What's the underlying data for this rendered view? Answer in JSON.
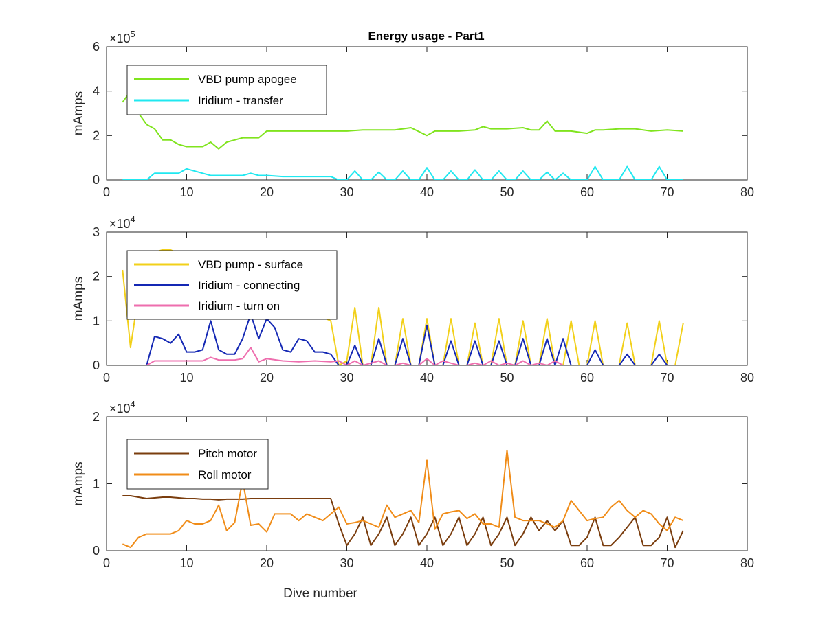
{
  "figure": {
    "title": "Energy usage - Part1"
  },
  "chart_data": [
    {
      "type": "line",
      "title": "Energy usage - Part1",
      "xlabel": "",
      "ylabel": "mAmps",
      "exponent_base": "×10",
      "exponent_power": "5",
      "xlim": [
        0,
        80
      ],
      "ylim": [
        0,
        6
      ],
      "xticks": [
        0,
        10,
        20,
        30,
        40,
        50,
        60,
        70,
        80
      ],
      "yticks": [
        0,
        2,
        4,
        6
      ],
      "legend_position": "top-left",
      "series": [
        {
          "name": "VBD pump apogee",
          "color": "#80e41e",
          "x": [
            2,
            3,
            4,
            5,
            6,
            7,
            8,
            9,
            10,
            11,
            12,
            13,
            14,
            15,
            16,
            17,
            18,
            19,
            20,
            22,
            24,
            26,
            28,
            30,
            32,
            34,
            36,
            38,
            40,
            41,
            42,
            44,
            46,
            47,
            48,
            50,
            52,
            53,
            54,
            55,
            56,
            58,
            60,
            61,
            62,
            64,
            66,
            68,
            70,
            72
          ],
          "y": [
            3.5,
            4.0,
            3.0,
            2.5,
            2.3,
            1.8,
            1.8,
            1.6,
            1.5,
            1.5,
            1.5,
            1.7,
            1.4,
            1.7,
            1.8,
            1.9,
            1.9,
            1.9,
            2.2,
            2.2,
            2.2,
            2.2,
            2.2,
            2.2,
            2.25,
            2.25,
            2.25,
            2.35,
            2.0,
            2.2,
            2.2,
            2.2,
            2.25,
            2.4,
            2.3,
            2.3,
            2.35,
            2.25,
            2.25,
            2.65,
            2.2,
            2.2,
            2.1,
            2.25,
            2.25,
            2.3,
            2.3,
            2.2,
            2.25,
            2.2
          ]
        },
        {
          "name": "Iridium - transfer",
          "color": "#20e8f0",
          "x": [
            2,
            3,
            4,
            5,
            6,
            7,
            8,
            9,
            10,
            11,
            12,
            13,
            14,
            15,
            16,
            17,
            18,
            19,
            20,
            22,
            24,
            26,
            28,
            29,
            30,
            31,
            32,
            33,
            34,
            35,
            36,
            37,
            38,
            39,
            40,
            41,
            42,
            43,
            44,
            45,
            46,
            47,
            48,
            49,
            50,
            51,
            52,
            53,
            54,
            55,
            56,
            57,
            58,
            59,
            60,
            61,
            62,
            63,
            64,
            65,
            66,
            67,
            68,
            69,
            70,
            71,
            72
          ],
          "y": [
            0,
            0,
            0,
            0,
            0.3,
            0.3,
            0.3,
            0.3,
            0.5,
            0.4,
            0.3,
            0.2,
            0.2,
            0.2,
            0.2,
            0.2,
            0.3,
            0.2,
            0.2,
            0.15,
            0.15,
            0.15,
            0.15,
            0,
            0,
            0.4,
            0,
            0,
            0.35,
            0,
            0,
            0.4,
            0,
            0,
            0.55,
            0,
            0,
            0.4,
            0,
            0,
            0.45,
            0,
            0,
            0.4,
            0,
            0,
            0.4,
            0,
            0,
            0.35,
            0,
            0.3,
            0,
            0,
            0,
            0.6,
            0,
            0,
            0,
            0.6,
            0,
            0,
            0,
            0.6,
            0,
            0,
            0
          ]
        }
      ]
    },
    {
      "type": "line",
      "title": "",
      "xlabel": "",
      "ylabel": "mAmps",
      "exponent_base": "×10",
      "exponent_power": "4",
      "xlim": [
        0,
        80
      ],
      "ylim": [
        0,
        3
      ],
      "xticks": [
        0,
        10,
        20,
        30,
        40,
        50,
        60,
        70,
        80
      ],
      "yticks": [
        0,
        1,
        2,
        3
      ],
      "legend_position": "top-left",
      "series": [
        {
          "name": "VBD pump - surface",
          "color": "#f2d01a",
          "x": [
            2,
            3,
            4,
            5,
            6,
            7,
            8,
            28,
            29,
            30,
            31,
            32,
            33,
            34,
            35,
            36,
            37,
            38,
            39,
            40,
            41,
            42,
            43,
            44,
            45,
            46,
            47,
            48,
            49,
            50,
            51,
            52,
            53,
            54,
            55,
            56,
            57,
            58,
            59,
            60,
            61,
            62,
            63,
            64,
            65,
            66,
            67,
            68,
            69,
            70,
            71,
            72
          ],
          "y": [
            2.15,
            0.4,
            1.6,
            2.3,
            2.55,
            2.6,
            2.6,
            1.0,
            0,
            0.1,
            1.3,
            0,
            0,
            1.3,
            0,
            0,
            1.05,
            0,
            0,
            1.05,
            0,
            0,
            1.05,
            0,
            0,
            0.95,
            0,
            0,
            1.05,
            0,
            0,
            1.0,
            0,
            0,
            1.05,
            0,
            0,
            1.0,
            0,
            0,
            1.0,
            0,
            0,
            0,
            0.95,
            0,
            0,
            0,
            1.0,
            0,
            0,
            0.95
          ]
        },
        {
          "name": "Iridium - connecting",
          "color": "#1428b4",
          "x": [
            2,
            3,
            4,
            5,
            6,
            7,
            8,
            9,
            10,
            11,
            12,
            13,
            14,
            15,
            16,
            17,
            18,
            19,
            20,
            21,
            22,
            23,
            24,
            25,
            26,
            27,
            28,
            29,
            30,
            31,
            32,
            33,
            34,
            35,
            36,
            37,
            38,
            39,
            40,
            41,
            42,
            43,
            44,
            45,
            46,
            47,
            48,
            49,
            50,
            51,
            52,
            53,
            54,
            55,
            56,
            57,
            58,
            59,
            60,
            61,
            62,
            63,
            64,
            65,
            66,
            67,
            68,
            69,
            70,
            71,
            72
          ],
          "y": [
            0,
            0,
            0,
            0,
            0.65,
            0.6,
            0.5,
            0.7,
            0.3,
            0.3,
            0.35,
            1.0,
            0.35,
            0.25,
            0.25,
            0.6,
            1.15,
            0.6,
            1.05,
            0.85,
            0.35,
            0.3,
            0.6,
            0.55,
            0.3,
            0.3,
            0.25,
            0,
            0,
            0.45,
            0,
            0,
            0.6,
            0,
            0,
            0.6,
            0,
            0,
            0.9,
            0,
            0,
            0.55,
            0,
            0,
            0.55,
            0,
            0,
            0.55,
            0,
            0,
            0.6,
            0,
            0,
            0.6,
            0,
            0.6,
            0,
            0,
            0,
            0.35,
            0,
            0,
            0,
            0.25,
            0,
            0,
            0,
            0.25,
            0,
            0,
            0
          ]
        },
        {
          "name": "Iridium - turn on",
          "color": "#ee6eae",
          "x": [
            2,
            3,
            4,
            5,
            6,
            8,
            10,
            12,
            13,
            14,
            16,
            17,
            18,
            19,
            20,
            22,
            24,
            26,
            28,
            29,
            30,
            31,
            32,
            33,
            34,
            35,
            36,
            37,
            38,
            39,
            40,
            41,
            42,
            43,
            44,
            45,
            46,
            47,
            48,
            49,
            50,
            51,
            52,
            53,
            54,
            55,
            56,
            57,
            58,
            60,
            62,
            64,
            66,
            68,
            70,
            72
          ],
          "y": [
            0,
            0,
            0,
            0,
            0.1,
            0.1,
            0.1,
            0.1,
            0.18,
            0.12,
            0.12,
            0.15,
            0.4,
            0.08,
            0.15,
            0.1,
            0.08,
            0.1,
            0.08,
            0.1,
            0,
            0.1,
            0,
            0.05,
            0.1,
            0,
            0,
            0.05,
            0,
            0,
            0.15,
            0,
            0.1,
            0.05,
            0,
            0,
            0.05,
            0,
            0.1,
            0,
            0.05,
            0,
            0.1,
            0,
            0.05,
            0,
            0.1,
            0,
            0,
            0,
            0,
            0,
            0,
            0,
            0,
            0
          ]
        }
      ]
    },
    {
      "type": "line",
      "title": "",
      "xlabel": "Dive number",
      "ylabel": "mAmps",
      "exponent_base": "×10",
      "exponent_power": "4",
      "xlim": [
        0,
        80
      ],
      "ylim": [
        0,
        2
      ],
      "xticks": [
        0,
        10,
        20,
        30,
        40,
        50,
        60,
        70,
        80
      ],
      "yticks": [
        0,
        1,
        2
      ],
      "legend_position": "top-left",
      "series": [
        {
          "name": "Pitch motor",
          "color": "#7a3d0e",
          "x": [
            2,
            3,
            4,
            5,
            6,
            7,
            8,
            9,
            10,
            11,
            12,
            13,
            14,
            15,
            16,
            17,
            18,
            19,
            20,
            21,
            22,
            23,
            24,
            25,
            26,
            27,
            28,
            29,
            30,
            31,
            32,
            33,
            34,
            35,
            36,
            37,
            38,
            39,
            40,
            41,
            42,
            43,
            44,
            45,
            46,
            47,
            48,
            49,
            50,
            51,
            52,
            53,
            54,
            55,
            56,
            57,
            58,
            59,
            60,
            61,
            62,
            63,
            64,
            65,
            66,
            67,
            68,
            69,
            70,
            71,
            72
          ],
          "y": [
            0.82,
            0.82,
            0.8,
            0.78,
            0.79,
            0.8,
            0.8,
            0.79,
            0.78,
            0.78,
            0.77,
            0.77,
            0.76,
            0.77,
            0.77,
            0.77,
            0.78,
            0.78,
            0.78,
            0.78,
            0.78,
            0.78,
            0.78,
            0.78,
            0.78,
            0.78,
            0.78,
            0.4,
            0.08,
            0.25,
            0.5,
            0.08,
            0.25,
            0.5,
            0.08,
            0.25,
            0.5,
            0.08,
            0.25,
            0.5,
            0.08,
            0.25,
            0.5,
            0.08,
            0.25,
            0.5,
            0.08,
            0.25,
            0.5,
            0.08,
            0.25,
            0.5,
            0.3,
            0.45,
            0.3,
            0.45,
            0.08,
            0.08,
            0.2,
            0.5,
            0.08,
            0.08,
            0.2,
            0.35,
            0.5,
            0.08,
            0.08,
            0.2,
            0.5,
            0.05,
            0.3
          ]
        },
        {
          "name": "Roll motor",
          "color": "#f08c18",
          "x": [
            2,
            3,
            4,
            5,
            6,
            7,
            8,
            9,
            10,
            11,
            12,
            13,
            14,
            15,
            16,
            17,
            18,
            19,
            20,
            21,
            22,
            23,
            24,
            25,
            26,
            27,
            28,
            29,
            30,
            31,
            32,
            33,
            34,
            35,
            36,
            37,
            38,
            39,
            40,
            41,
            42,
            43,
            44,
            45,
            46,
            47,
            48,
            49,
            50,
            51,
            52,
            53,
            54,
            55,
            56,
            57,
            58,
            59,
            60,
            61,
            62,
            63,
            64,
            65,
            66,
            67,
            68,
            69,
            70,
            71,
            72
          ],
          "y": [
            0.1,
            0.05,
            0.2,
            0.25,
            0.25,
            0.25,
            0.25,
            0.3,
            0.45,
            0.4,
            0.4,
            0.45,
            0.68,
            0.3,
            0.42,
            1.05,
            0.38,
            0.4,
            0.28,
            0.55,
            0.55,
            0.55,
            0.45,
            0.55,
            0.5,
            0.45,
            0.55,
            0.65,
            0.4,
            0.42,
            0.45,
            0.4,
            0.35,
            0.68,
            0.5,
            0.55,
            0.6,
            0.42,
            1.35,
            0.32,
            0.55,
            0.58,
            0.6,
            0.48,
            0.55,
            0.4,
            0.4,
            0.35,
            1.5,
            0.5,
            0.45,
            0.45,
            0.45,
            0.4,
            0.35,
            0.45,
            0.75,
            0.6,
            0.45,
            0.48,
            0.5,
            0.65,
            0.75,
            0.6,
            0.5,
            0.6,
            0.55,
            0.4,
            0.3,
            0.5,
            0.45
          ]
        }
      ]
    }
  ]
}
